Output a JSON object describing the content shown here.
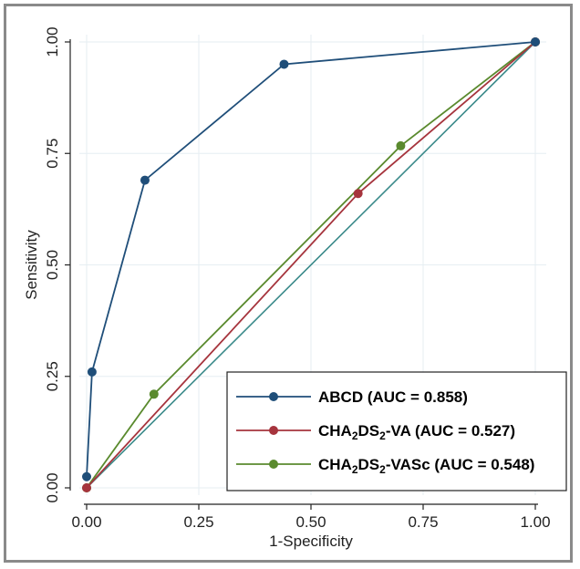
{
  "chart_data": {
    "type": "line",
    "xlabel": "1-Specificity",
    "ylabel": "Sensitivity",
    "xlim": [
      0,
      1
    ],
    "ylim": [
      0,
      1
    ],
    "xticks": [
      "0.00",
      "0.25",
      "0.50",
      "0.75",
      "1.00"
    ],
    "yticks": [
      "0.00",
      "0.25",
      "0.50",
      "0.75",
      "1.00"
    ],
    "grid": true,
    "legend_position": "bottom-right",
    "reference_line": {
      "x": [
        0,
        1
      ],
      "y": [
        0,
        1
      ],
      "color": "#3a8a8a"
    },
    "series": [
      {
        "name": "ABCD (AUC = 0.858)",
        "legend": {
          "pre": "ABCD (AUC = 0.858)"
        },
        "color": "#1f4e79",
        "x": [
          0.0,
          0.012,
          0.13,
          0.44,
          1.0
        ],
        "y": [
          0.025,
          0.26,
          0.69,
          0.95,
          1.0
        ]
      },
      {
        "name": "CHA2DS2-VA (AUC = 0.527)",
        "legend": {
          "pre": "CHA",
          "sub1": "2",
          "mid": "DS",
          "sub2": "2",
          "post": "-VA (AUC = 0.527)"
        },
        "color": "#a6343d",
        "x": [
          0.0,
          0.605,
          1.0
        ],
        "y": [
          0.0,
          0.66,
          1.0
        ]
      },
      {
        "name": "CHA2DS2-VASc (AUC = 0.548)",
        "legend": {
          "pre": "CHA",
          "sub1": "2",
          "mid": "DS",
          "sub2": "2",
          "post": "-VASc (AUC = 0.548)"
        },
        "color": "#5a8a2e",
        "x": [
          0.0,
          0.15,
          0.7,
          1.0
        ],
        "y": [
          0.0,
          0.21,
          0.767,
          1.0
        ]
      }
    ]
  }
}
